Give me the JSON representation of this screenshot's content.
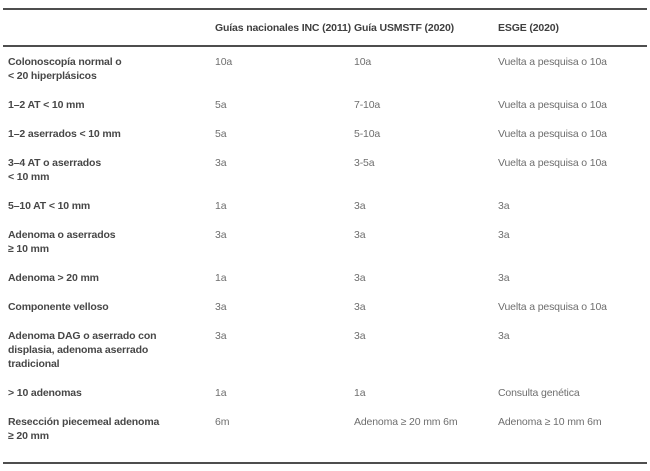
{
  "table": {
    "headers": [
      "",
      "Guías nacionales INC (2011)",
      "Guía USMSTF (2020)",
      "ESGE (2020)"
    ],
    "rows": [
      {
        "label_lines": [
          "Colonoscopía normal o",
          "< 20 hiperplásicos"
        ],
        "values": [
          "10a",
          "10a",
          "Vuelta a pesquisa o 10a"
        ]
      },
      {
        "label_lines": [
          "1–2 AT < 10 mm"
        ],
        "values": [
          "5a",
          "7-10a",
          "Vuelta a pesquisa o 10a"
        ]
      },
      {
        "label_lines": [
          "1–2 aserrados < 10 mm"
        ],
        "values": [
          "5a",
          "5-10a",
          "Vuelta a pesquisa o 10a"
        ]
      },
      {
        "label_lines": [
          "3–4 AT o aserrados",
          "< 10 mm"
        ],
        "values": [
          "3a",
          "3-5a",
          "Vuelta a pesquisa o 10a"
        ]
      },
      {
        "label_lines": [
          "5–10 AT < 10 mm"
        ],
        "values": [
          "1a",
          "3a",
          "3a"
        ]
      },
      {
        "label_lines": [
          "Adenoma o aserrados",
          "≥ 10 mm"
        ],
        "values": [
          "3a",
          "3a",
          "3a"
        ]
      },
      {
        "label_lines": [
          "Adenoma > 20 mm"
        ],
        "values": [
          "1a",
          "3a",
          "3a"
        ]
      },
      {
        "label_lines": [
          "Componente velloso"
        ],
        "values": [
          "3a",
          "3a",
          "Vuelta a pesquisa o 10a"
        ]
      },
      {
        "label_lines": [
          "Adenoma DAG o aserrado con",
          "displasia, adenoma aserrado",
          "tradicional"
        ],
        "values": [
          "3a",
          "3a",
          "3a"
        ]
      },
      {
        "label_lines": [
          "> 10 adenomas"
        ],
        "values": [
          "1a",
          "1a",
          "Consulta genética"
        ]
      },
      {
        "label_lines": [
          "Resección piecemeal adenoma",
          "≥ 20 mm"
        ],
        "values": [
          "6m",
          "Adenoma ≥ 20 mm 6m",
          "Adenoma ≥ 10 mm 6m"
        ]
      }
    ]
  },
  "colors": {
    "rule": "#4e4e4e",
    "header_text": "#3f3f3f",
    "label_text": "#474747",
    "value_text": "#6e6e6e",
    "background": "#ffffff"
  }
}
